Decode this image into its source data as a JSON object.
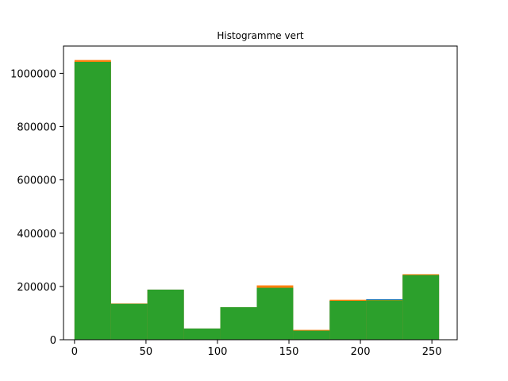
{
  "chart_data": {
    "type": "bar",
    "title": "Histogramme vert",
    "xlabel": "",
    "ylabel": "",
    "xlim": [
      -7.7,
      267.7
    ],
    "ylim": [
      0,
      1102500
    ],
    "x_ticks": [
      0,
      50,
      100,
      150,
      200,
      250
    ],
    "x_tick_labels": [
      "0",
      "50",
      "100",
      "150",
      "200",
      "250"
    ],
    "y_ticks": [
      0,
      200000,
      400000,
      600000,
      800000,
      1000000
    ],
    "y_tick_labels": [
      "0",
      "200000",
      "400000",
      "600000",
      "800000",
      "1000000"
    ],
    "bin_edges": [
      0,
      25.5,
      51,
      76.5,
      102,
      127.5,
      153,
      178.5,
      204,
      229.5,
      255
    ],
    "series": [
      {
        "color": "#1f77b4",
        "values": [
          1045000,
          135000,
          188000,
          42000,
          122000,
          196000,
          34000,
          147000,
          152000,
          243000
        ]
      },
      {
        "color": "#ff7f0e",
        "values": [
          1050000,
          136000,
          188000,
          42000,
          122000,
          204000,
          37000,
          150000,
          149000,
          246000
        ]
      },
      {
        "color": "#2ca02c",
        "values": [
          1043000,
          135000,
          188000,
          42000,
          122000,
          195000,
          34000,
          146000,
          148000,
          243000
        ]
      }
    ],
    "grid": false,
    "legend": "none"
  }
}
